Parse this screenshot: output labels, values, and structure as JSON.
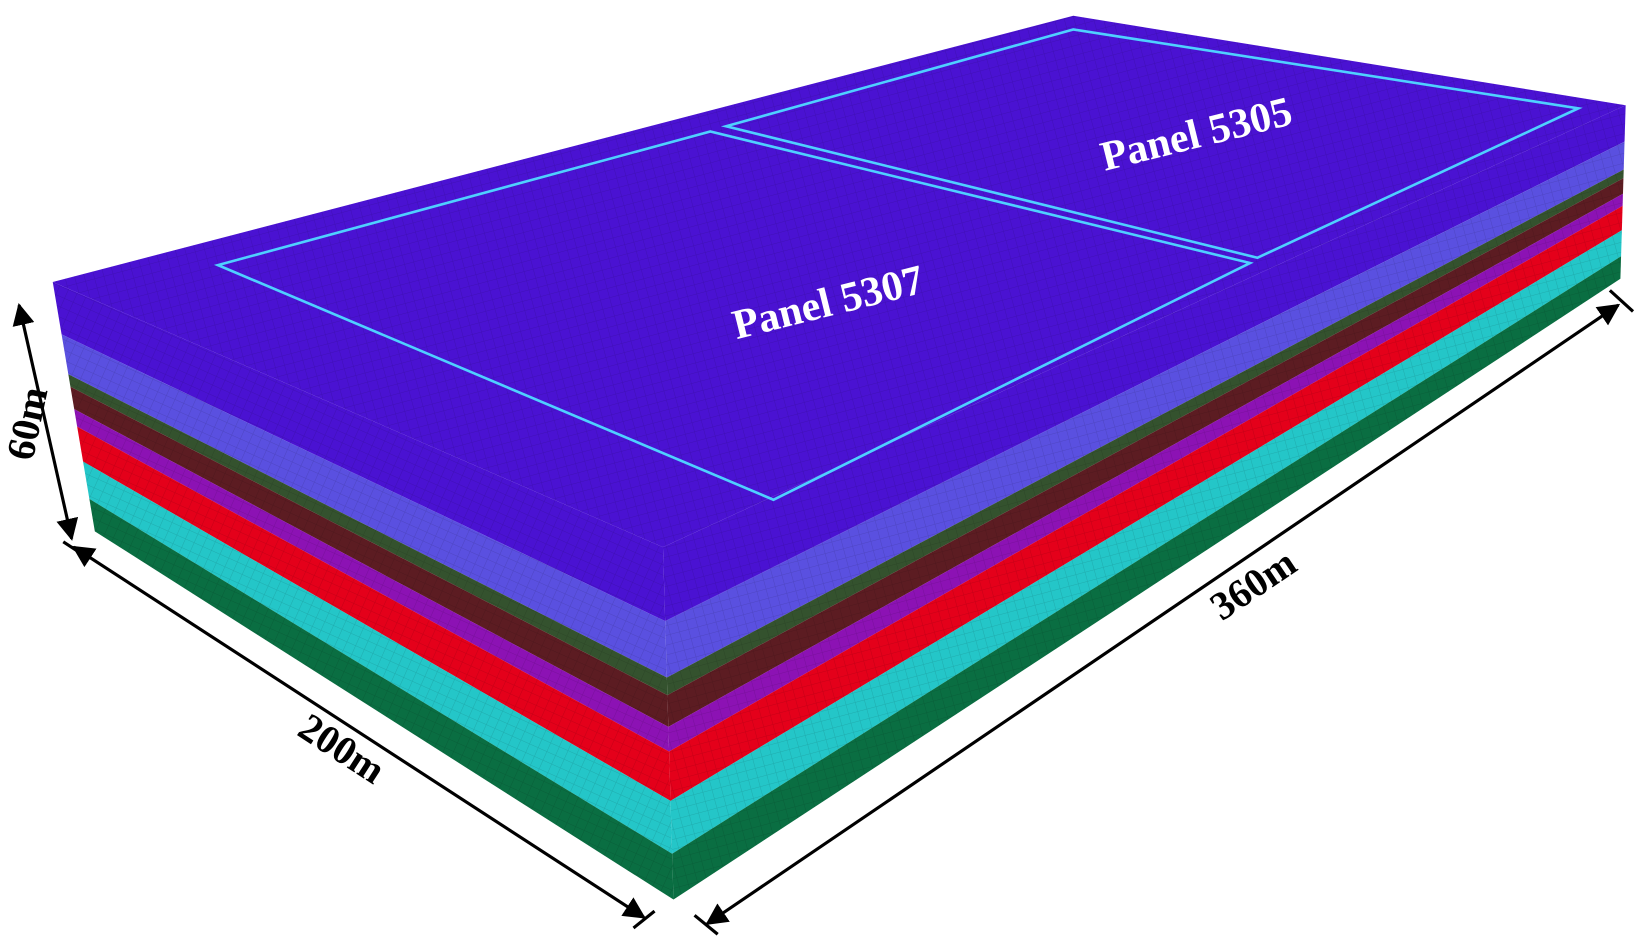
{
  "panels": [
    {
      "label": "Panel 5307"
    },
    {
      "label": "Panel 5305"
    }
  ],
  "dimensions": [
    {
      "label": "60m"
    },
    {
      "label": "200m"
    },
    {
      "label": "360m"
    }
  ]
}
